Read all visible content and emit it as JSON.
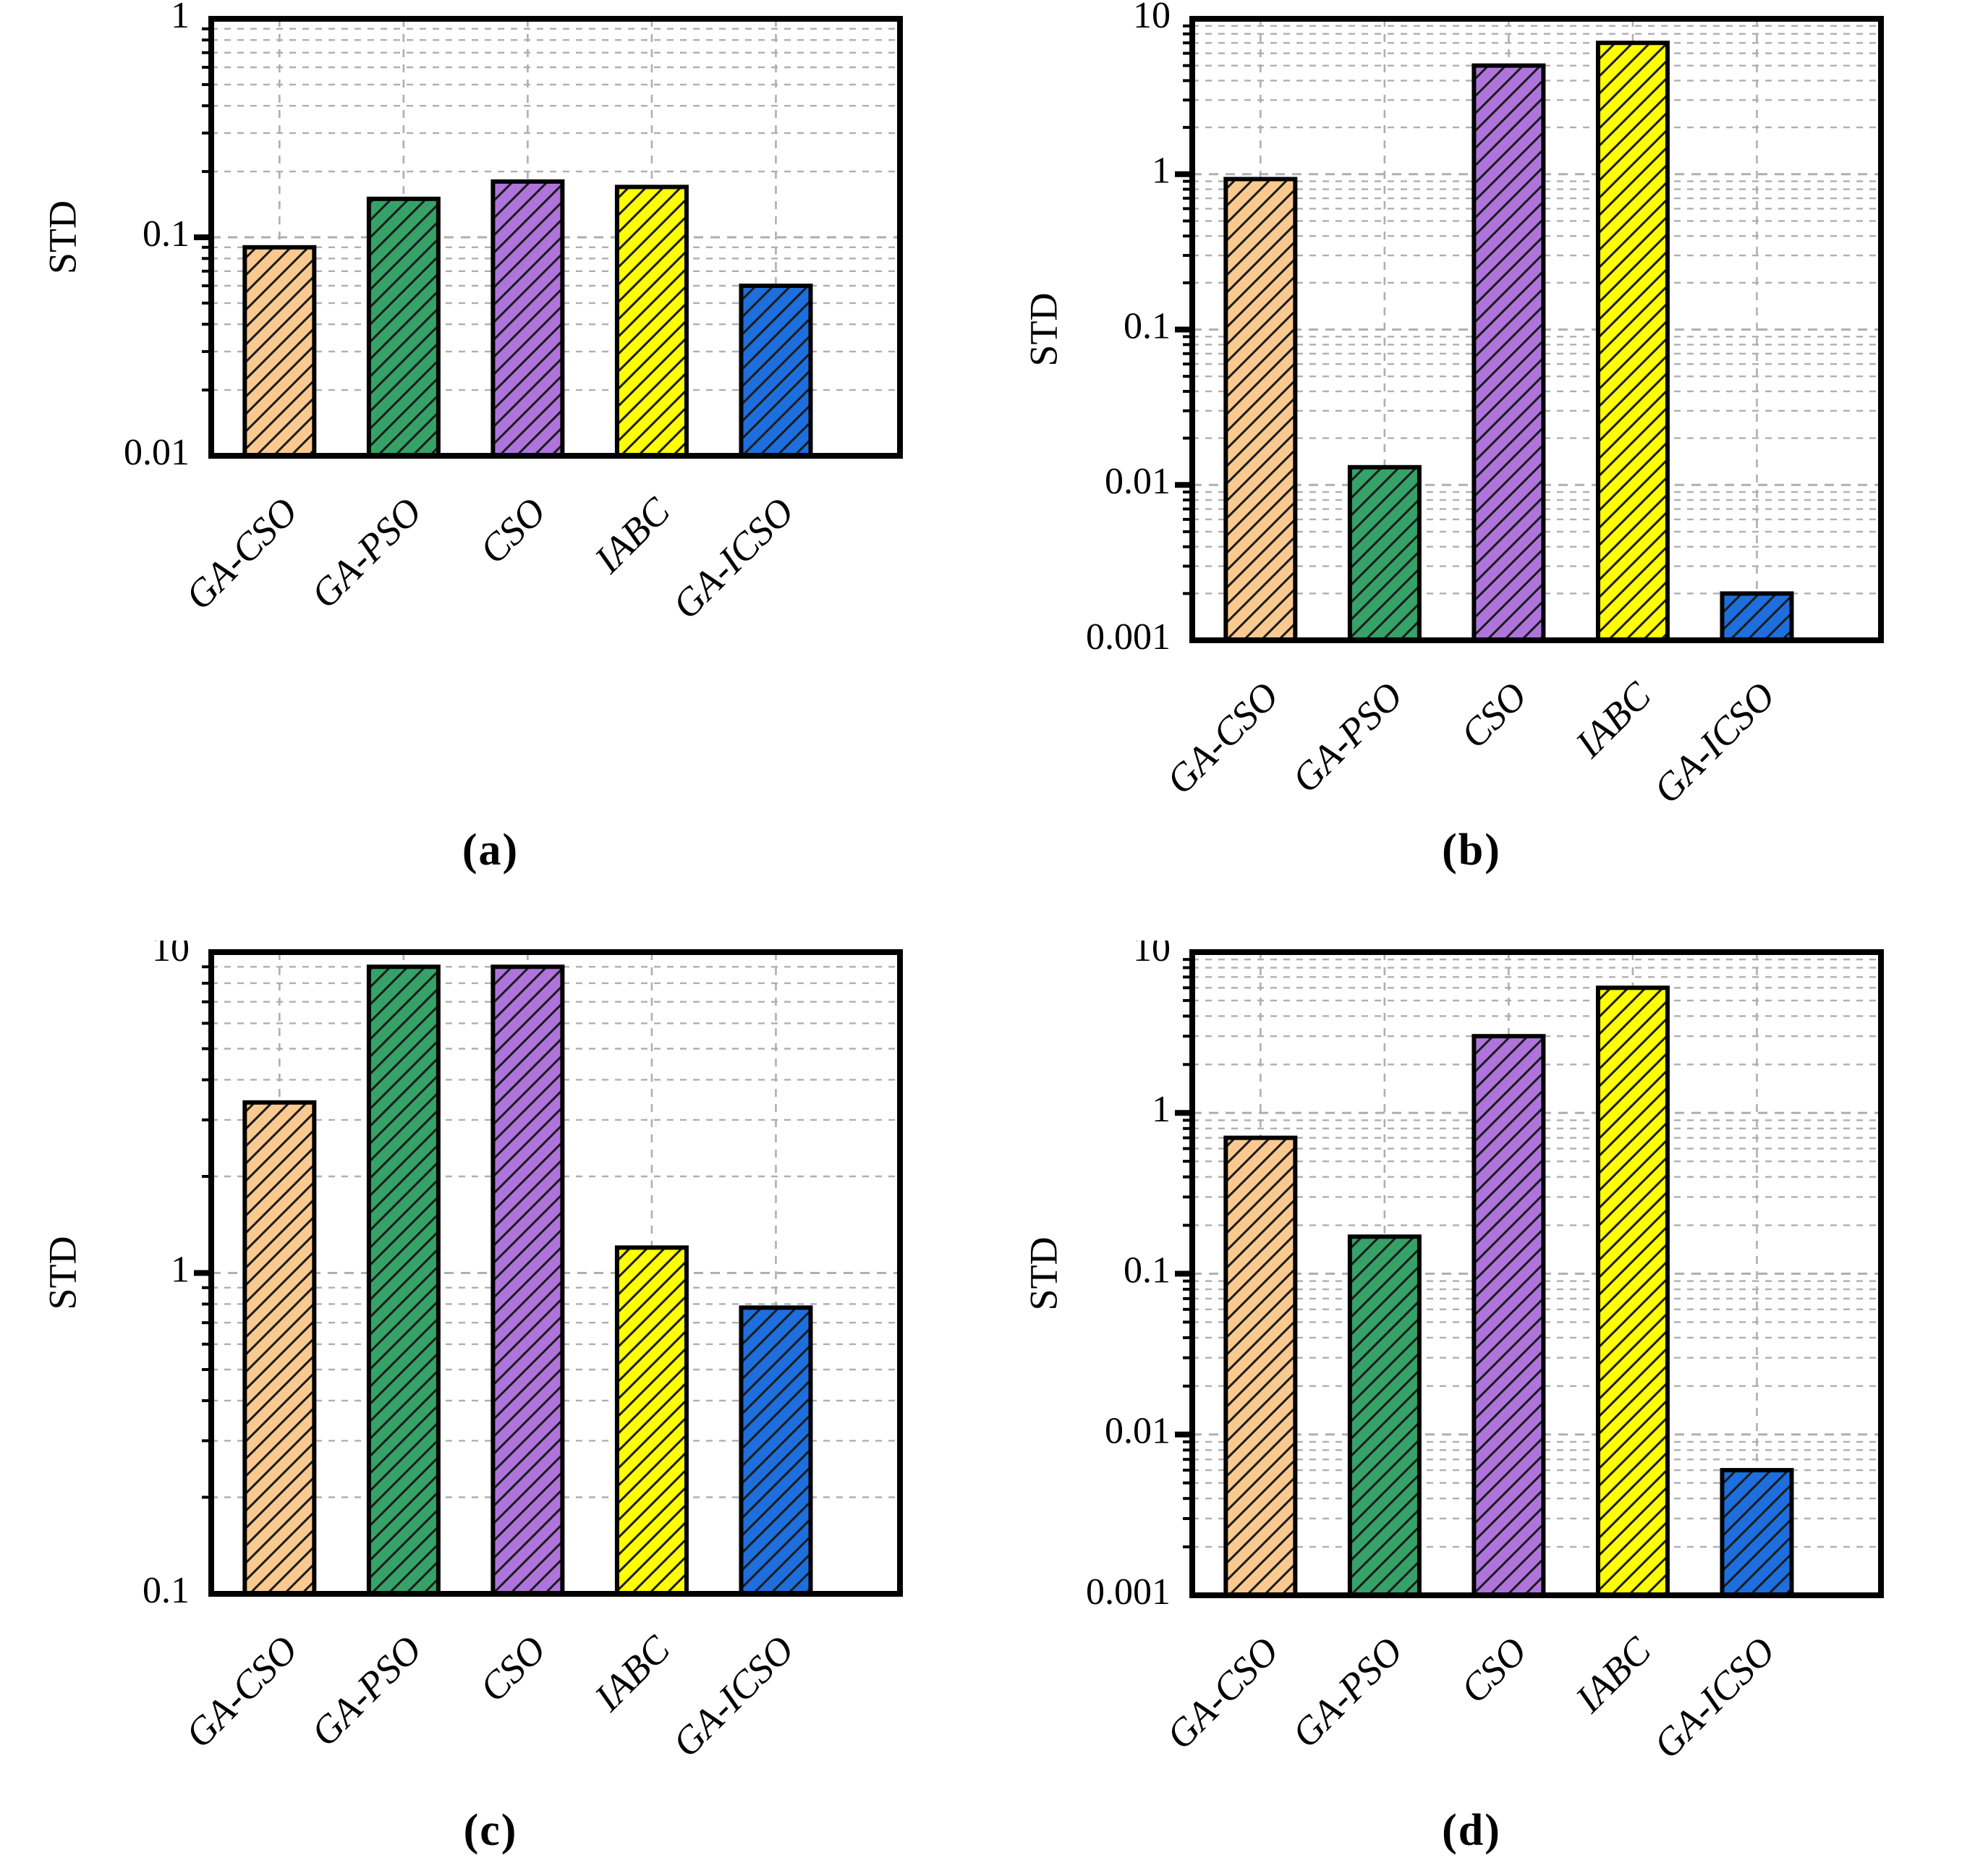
{
  "style": {
    "bar_colors": [
      "#F9C98F",
      "#35A268",
      "#AE74DC",
      "#FFFF00",
      "#1C6FDD"
    ],
    "hatch_color": "#1B1B1B",
    "grid_color": "#AFAFAF",
    "frame_color": "#000000",
    "background": "#FFFFFF",
    "text_color": "#000000"
  },
  "chart_data": [
    {
      "type": "bar",
      "yscale": "log",
      "panel_label": "(a)",
      "ylabel": "STD",
      "categories": [
        "GA-CSO",
        "GA-PSO",
        "CSO",
        "IABC",
        "GA-ICSO"
      ],
      "values": [
        0.09,
        0.15,
        0.18,
        0.17,
        0.06
      ],
      "ylim": [
        0.01,
        1
      ],
      "yticks": [
        "0.01",
        "0.1",
        "1"
      ],
      "grid": true,
      "legend_position": "none"
    },
    {
      "type": "bar",
      "yscale": "log",
      "panel_label": "(b)",
      "ylabel": "STD",
      "categories": [
        "GA-CSO",
        "GA-PSO",
        "CSO",
        "IABC",
        "GA-ICSO"
      ],
      "values": [
        0.93,
        0.013,
        5,
        7,
        0.002
      ],
      "ylim": [
        0.001,
        10
      ],
      "yticks": [
        "0.001",
        "0.01",
        "0.1",
        "1",
        "10"
      ],
      "grid": true,
      "legend_position": "none"
    },
    {
      "type": "bar",
      "yscale": "log",
      "panel_label": "(c)",
      "ylabel": "STD",
      "categories": [
        "GA-CSO",
        "GA-PSO",
        "CSO",
        "IABC",
        "GA-ICSO"
      ],
      "values": [
        3.4,
        9,
        9,
        1.2,
        0.78
      ],
      "ylim": [
        0.1,
        10
      ],
      "yticks": [
        "0.1",
        "1",
        "10"
      ],
      "grid": true,
      "legend_position": "none"
    },
    {
      "type": "bar",
      "yscale": "log",
      "panel_label": "(d)",
      "ylabel": "STD",
      "categories": [
        "GA-CSO",
        "GA-PSO",
        "CSO",
        "IABC",
        "GA-ICSO"
      ],
      "values": [
        0.7,
        0.17,
        3,
        6,
        0.006
      ],
      "ylim": [
        0.001,
        10
      ],
      "yticks": [
        "0.001",
        "0.01",
        "0.1",
        "1",
        "10"
      ],
      "grid": true,
      "legend_position": "none"
    }
  ]
}
